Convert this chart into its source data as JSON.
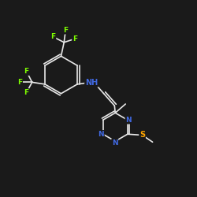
{
  "background_color": "#1a1a1a",
  "bond_color": "#e8e8e8",
  "atom_colors": {
    "F": "#7fff00",
    "N": "#4169e1",
    "S": "#ffa500",
    "C": "#e8e8e8",
    "H": "#e8e8e8"
  },
  "bond_width": 1.2,
  "font_size_atom": 6.5,
  "fig_width": 2.5,
  "fig_height": 2.5,
  "dpi": 100,
  "xlim": [
    0,
    10
  ],
  "ylim": [
    0,
    10
  ]
}
